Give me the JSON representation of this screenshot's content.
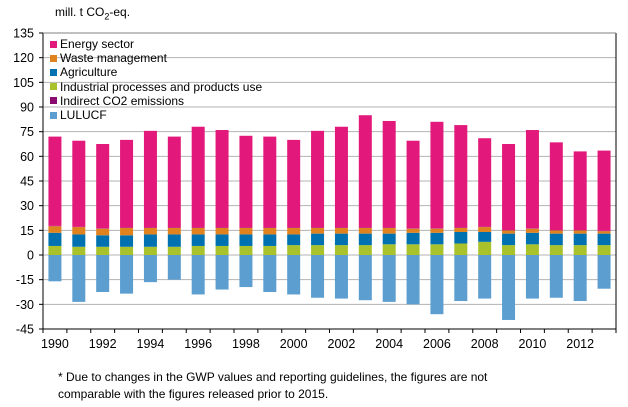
{
  "chart_data": {
    "type": "bar",
    "stacked": true,
    "ylabel_prefix": "mill. t CO",
    "ylabel_sub": "2",
    "ylabel_suffix": "-eq.",
    "ylim": [
      -45,
      135
    ],
    "yticks": [
      -45,
      -30,
      -15,
      0,
      15,
      30,
      45,
      60,
      75,
      90,
      105,
      120,
      135
    ],
    "grid": true,
    "legend_position": "top-left",
    "categories": [
      1990,
      1991,
      1992,
      1993,
      1994,
      1995,
      1996,
      1997,
      1998,
      1999,
      2000,
      2001,
      2002,
      2003,
      2004,
      2005,
      2006,
      2007,
      2008,
      2009,
      2010,
      2011,
      2012,
      2013
    ],
    "xtick_labels": [
      "1990",
      "1992",
      "1994",
      "1996",
      "1998",
      "2000",
      "2002",
      "2004",
      "2006",
      "2008",
      "2010",
      "2012"
    ],
    "series": [
      {
        "name": "Industrial processes and products use",
        "color": "#a9c22b",
        "values": [
          5.5,
          5,
          5,
          5,
          5,
          5,
          5.5,
          5.5,
          5.5,
          5.5,
          6,
          6,
          6,
          6,
          6.5,
          6.5,
          6.5,
          7,
          8,
          6,
          6.5,
          6,
          6,
          6
        ]
      },
      {
        "name": "Agriculture",
        "color": "#0071b0",
        "values": [
          8,
          7.5,
          7,
          7,
          7.5,
          7.5,
          7,
          7,
          7,
          7,
          6.5,
          7,
          7,
          7,
          6.5,
          7,
          7,
          7,
          6,
          7,
          7,
          7,
          7,
          7
        ]
      },
      {
        "name": "Waste management",
        "color": "#e0831f",
        "values": [
          4,
          4.5,
          4,
          4.5,
          4,
          4,
          4,
          4,
          4,
          4,
          4,
          3.5,
          3.5,
          3.5,
          3.5,
          2.5,
          2.5,
          2.5,
          3,
          2,
          2.5,
          2,
          2,
          1.5
        ]
      },
      {
        "name": "Indirect CO2 emissions",
        "color": "#8b0a6e",
        "values": [
          0.2,
          0.2,
          0.2,
          0.2,
          0.2,
          0.2,
          0.2,
          0.2,
          0.2,
          0.2,
          0.2,
          0.2,
          0.2,
          0.2,
          0.2,
          0.2,
          0.2,
          0.2,
          0.2,
          0.2,
          0.2,
          0.2,
          0.2,
          0.2
        ]
      },
      {
        "name": "Energy sector",
        "color": "#e2197a",
        "values": [
          54.3,
          52.3,
          51.3,
          53.3,
          58.8,
          55.3,
          61.3,
          59.3,
          55.8,
          55.3,
          53.3,
          58.8,
          61.3,
          68.3,
          64.8,
          53.3,
          64.8,
          62.3,
          53.8,
          52.3,
          59.8,
          53.3,
          47.8,
          48.8
        ]
      },
      {
        "name": "LULUCF",
        "color": "#5b9ecf",
        "values": [
          -16,
          -28.5,
          -22.5,
          -23.5,
          -16.5,
          -15,
          -24,
          -21,
          -19.5,
          -22.5,
          -24,
          -26,
          -26.5,
          -27.5,
          -28.5,
          -30,
          -36,
          -28,
          -26.5,
          -39.5,
          -26.5,
          -26,
          -28,
          -20.5
        ]
      }
    ],
    "legend_order": [
      "Energy sector",
      "Waste management",
      "Agriculture",
      "Industrial processes and products use",
      "Indirect CO2 emissions",
      "LULUCF"
    ]
  },
  "footnote": {
    "marker": "*",
    "line1": " Due to changes in the GWP values  and reporting  guidelines, the figures are not",
    "line2": "comparable with the figures  released prior to 2015."
  }
}
